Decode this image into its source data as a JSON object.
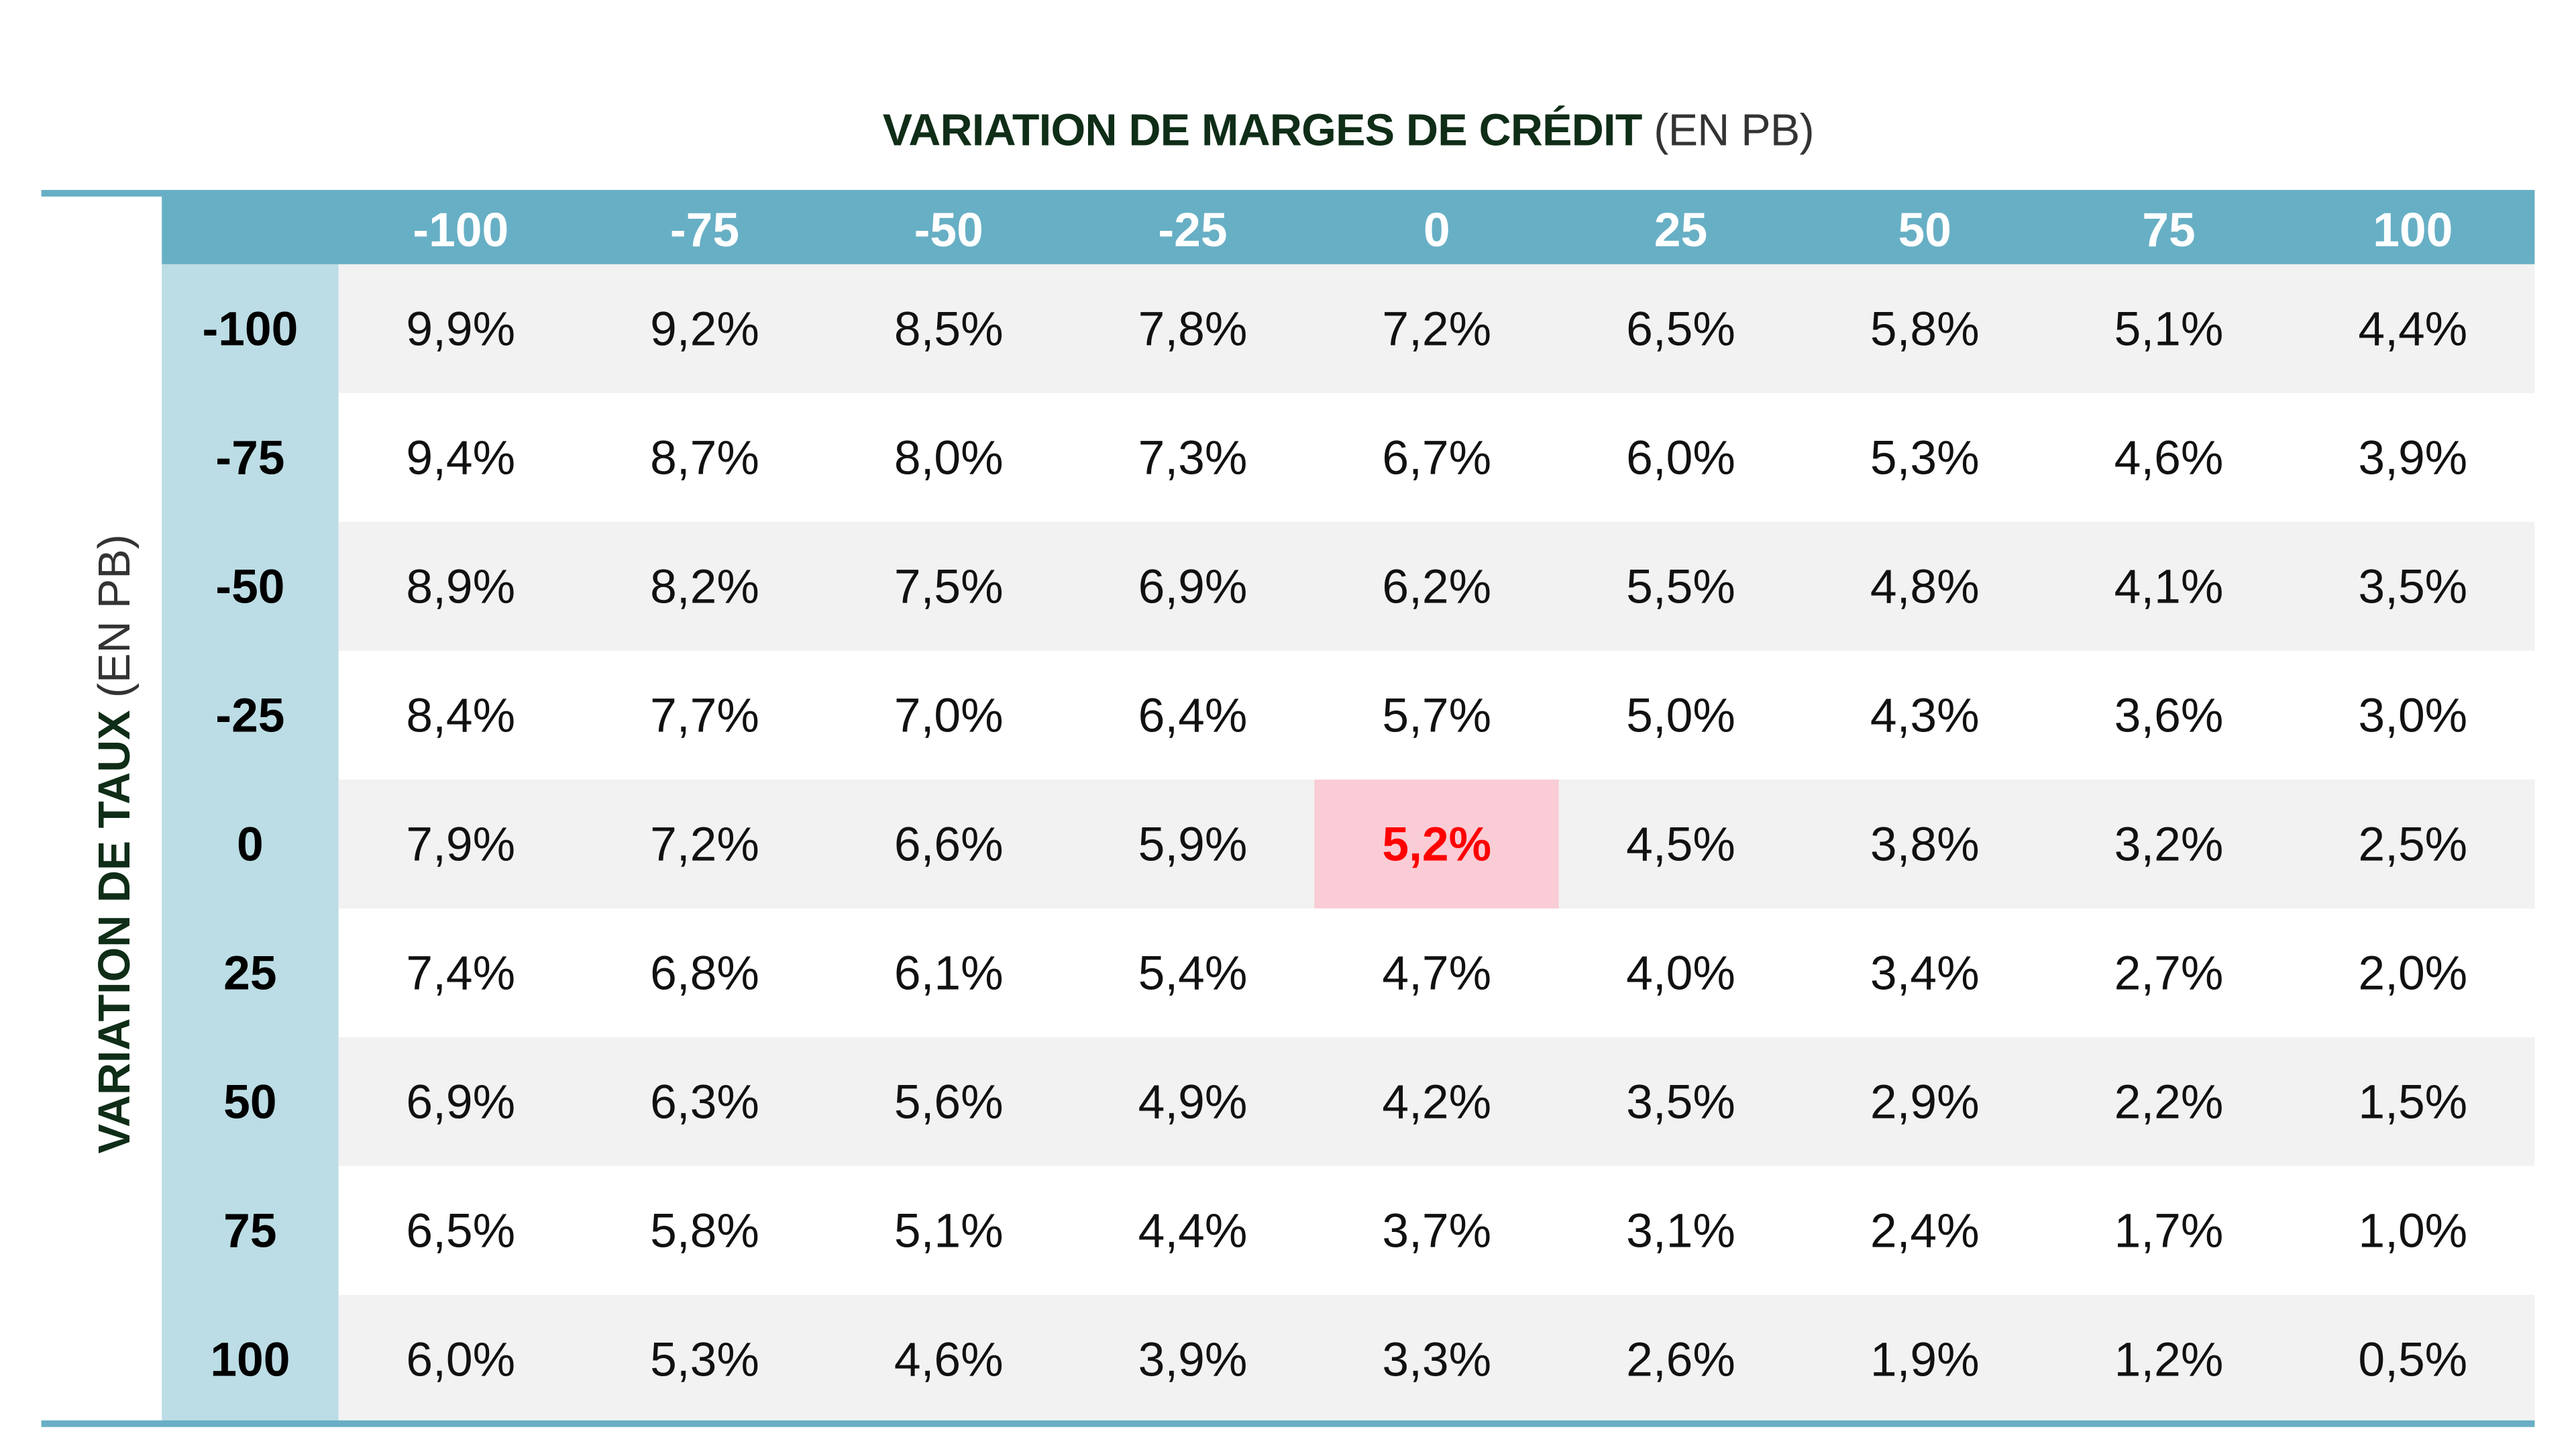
{
  "title": {
    "bold": "VARIATION DE MARGES DE CRÉDIT",
    "regular": " (EN PB)"
  },
  "row_axis": {
    "bold": "VARIATION DE TAUX",
    "regular": " (EN PB)"
  },
  "columns": [
    "-100",
    "-75",
    "-50",
    "-25",
    "0",
    "25",
    "50",
    "75",
    "100"
  ],
  "rows": [
    {
      "label": "-100",
      "values": [
        "9,9%",
        "9,2%",
        "8,5%",
        "7,8%",
        "7,2%",
        "6,5%",
        "5,8%",
        "5,1%",
        "4,4%"
      ]
    },
    {
      "label": "-75",
      "values": [
        "9,4%",
        "8,7%",
        "8,0%",
        "7,3%",
        "6,7%",
        "6,0%",
        "5,3%",
        "4,6%",
        "3,9%"
      ]
    },
    {
      "label": "-50",
      "values": [
        "8,9%",
        "8,2%",
        "7,5%",
        "6,9%",
        "6,2%",
        "5,5%",
        "4,8%",
        "4,1%",
        "3,5%"
      ]
    },
    {
      "label": "-25",
      "values": [
        "8,4%",
        "7,7%",
        "7,0%",
        "6,4%",
        "5,7%",
        "5,0%",
        "4,3%",
        "3,6%",
        "3,0%"
      ]
    },
    {
      "label": "0",
      "values": [
        "7,9%",
        "7,2%",
        "6,6%",
        "5,9%",
        "5,2%",
        "4,5%",
        "3,8%",
        "3,2%",
        "2,5%"
      ]
    },
    {
      "label": "25",
      "values": [
        "7,4%",
        "6,8%",
        "6,1%",
        "5,4%",
        "4,7%",
        "4,0%",
        "3,4%",
        "2,7%",
        "2,0%"
      ]
    },
    {
      "label": "50",
      "values": [
        "6,9%",
        "6,3%",
        "5,6%",
        "4,9%",
        "4,2%",
        "3,5%",
        "2,9%",
        "2,2%",
        "1,5%"
      ]
    },
    {
      "label": "75",
      "values": [
        "6,5%",
        "5,8%",
        "5,1%",
        "4,4%",
        "3,7%",
        "3,1%",
        "2,4%",
        "1,7%",
        "1,0%"
      ]
    },
    {
      "label": "100",
      "values": [
        "6,0%",
        "5,3%",
        "4,6%",
        "3,9%",
        "3,3%",
        "2,6%",
        "1,9%",
        "1,2%",
        "0,5%"
      ]
    }
  ],
  "highlight": {
    "row": 4,
    "col": 4
  },
  "colors": {
    "header": "#67afc5",
    "row_header": "#bcdde5",
    "stripe": "#f2f2f2",
    "highlight_bg": "#f9ccd6",
    "highlight_text": "#ff0000"
  }
}
